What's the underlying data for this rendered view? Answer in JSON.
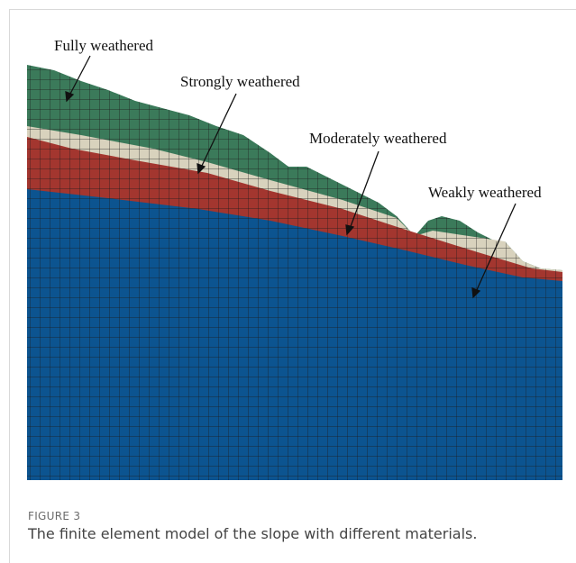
{
  "figure": {
    "labels": [
      "Fully weathered",
      "Strongly weathered",
      "Moderately weathered",
      "Weakly weathered"
    ]
  },
  "caption": {
    "label": "FIGURE 3",
    "text": "The finite element model of the slope with different materials."
  }
}
